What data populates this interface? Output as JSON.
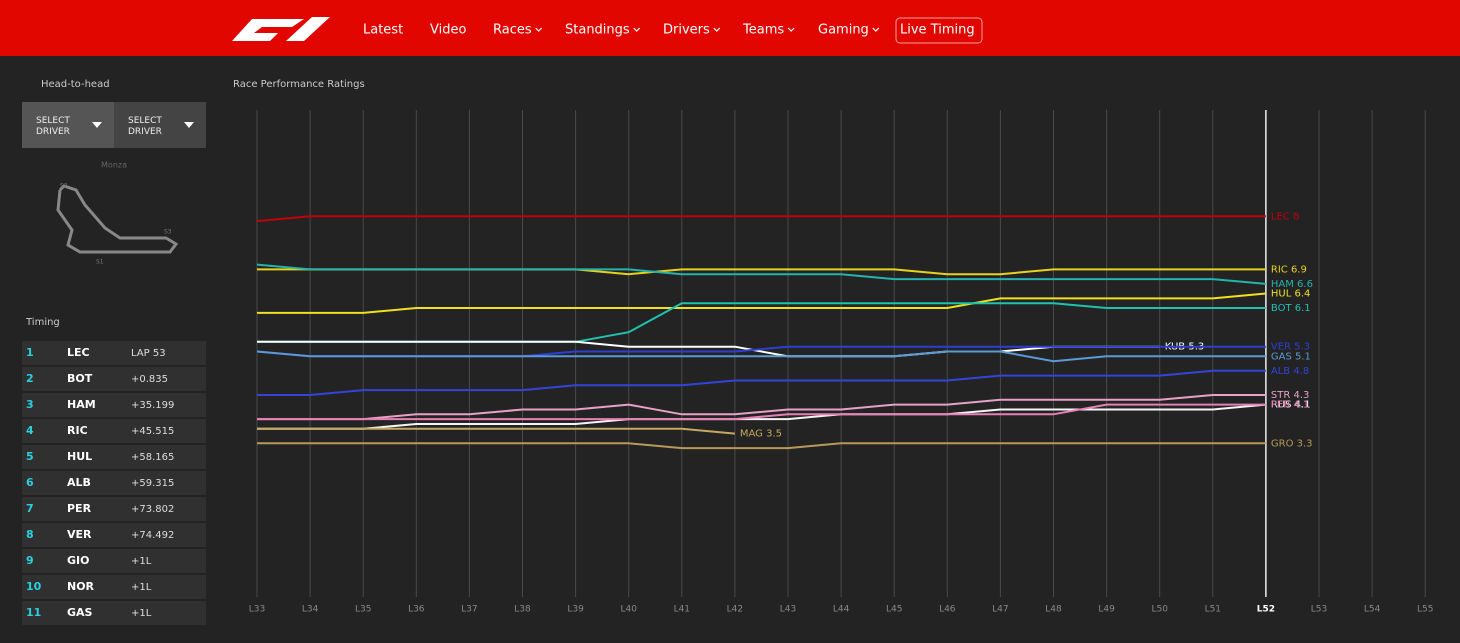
{
  "nav": {
    "items": [
      {
        "label": "Latest",
        "dropdown": false
      },
      {
        "label": "Video",
        "dropdown": false
      },
      {
        "label": "Races",
        "dropdown": true
      },
      {
        "label": "Standings",
        "dropdown": true
      },
      {
        "label": "Drivers",
        "dropdown": true
      },
      {
        "label": "Teams",
        "dropdown": true
      },
      {
        "label": "Gaming",
        "dropdown": true
      },
      {
        "label": "Live Timing",
        "dropdown": false
      }
    ]
  },
  "sidebar": {
    "head_to_head": "Head-to-head",
    "buttons": [
      "SELECT DRIVER",
      "SELECT DRIVER"
    ],
    "circuit": "Monza",
    "sectors": [
      "S1",
      "S2",
      "S3"
    ],
    "timing_title": "Timing",
    "timing": [
      [
        "1",
        "LEC",
        "LAP 53"
      ],
      [
        "2",
        "BOT",
        "+0.835"
      ],
      [
        "3",
        "HAM",
        "+35.199"
      ],
      [
        "4",
        "RIC",
        "+45.515"
      ],
      [
        "5",
        "HUL",
        "+58.165"
      ],
      [
        "6",
        "ALB",
        "+59.315"
      ],
      [
        "7",
        "PER",
        "+73.802"
      ],
      [
        "8",
        "VER",
        "+74.492"
      ],
      [
        "9",
        "GIO",
        "+1L"
      ],
      [
        "10",
        "NOR",
        "+1L"
      ],
      [
        "11",
        "GAS",
        "+1L"
      ]
    ]
  },
  "chart_data": {
    "type": "line",
    "title": "Race Performance Ratings",
    "categories": [
      "L33",
      "L34",
      "L35",
      "L36",
      "L37",
      "L38",
      "L39",
      "L40",
      "L41",
      "L42",
      "L43",
      "L44",
      "L45",
      "L46",
      "L47",
      "L48",
      "L49",
      "L50",
      "L51",
      "L52",
      "L53",
      "L54",
      "L55"
    ],
    "current_index": 19,
    "ylim": [
      0.2,
      10.2
    ],
    "grid": true,
    "series": [
      {
        "name": "LEC",
        "label": "LEC 8",
        "color": "#c4000a",
        "values": [
          7.9,
          8,
          8,
          8,
          8,
          8,
          8,
          8,
          8,
          8,
          8,
          8,
          8,
          8,
          8,
          8,
          8,
          8,
          8,
          8,
          null,
          null,
          null
        ]
      },
      {
        "name": "RIC",
        "label": "RIC 6.9",
        "color": "#e8d21c",
        "values": [
          6.9,
          6.9,
          6.9,
          6.9,
          6.9,
          6.9,
          6.9,
          6.8,
          6.9,
          6.9,
          6.9,
          6.9,
          6.9,
          6.8,
          6.8,
          6.9,
          6.9,
          6.9,
          6.9,
          6.9,
          null,
          null,
          null
        ]
      },
      {
        "name": "HAM",
        "label": "HAM 6.6",
        "color": "#26b3ad",
        "values": [
          7.0,
          6.9,
          6.9,
          6.9,
          6.9,
          6.9,
          6.9,
          6.9,
          6.8,
          6.8,
          6.8,
          6.8,
          6.7,
          6.7,
          6.7,
          6.7,
          6.7,
          6.7,
          6.7,
          6.6,
          null,
          null,
          null
        ]
      },
      {
        "name": "HUL",
        "label": "HUL 6.4",
        "color": "#f0e020",
        "values": [
          6.0,
          6.0,
          6.0,
          6.1,
          6.1,
          6.1,
          6.1,
          6.1,
          6.1,
          6.1,
          6.1,
          6.1,
          6.1,
          6.1,
          6.3,
          6.3,
          6.3,
          6.3,
          6.3,
          6.4,
          null,
          null,
          null
        ]
      },
      {
        "name": "BOT",
        "label": "BOT 6.1",
        "color": "#1fc2b0",
        "values": [
          5.4,
          5.4,
          5.4,
          5.4,
          5.4,
          5.4,
          5.4,
          5.6,
          6.2,
          6.2,
          6.2,
          6.2,
          6.2,
          6.2,
          6.2,
          6.2,
          6.1,
          6.1,
          6.1,
          6.1,
          null,
          null,
          null
        ]
      },
      {
        "name": "KUB",
        "label": "KUB 5.3",
        "color": "#ffffff",
        "values": [
          5.4,
          5.4,
          5.4,
          5.4,
          5.4,
          5.4,
          5.4,
          5.3,
          5.3,
          5.3,
          5.1,
          5.1,
          5.1,
          5.2,
          5.2,
          5.3,
          5.3,
          5.3,
          null,
          null,
          null,
          null,
          null
        ]
      },
      {
        "name": "VER",
        "label": "VER 5.3",
        "color": "#2d3fd0",
        "values": [
          5.2,
          5.1,
          5.1,
          5.1,
          5.1,
          5.1,
          5.2,
          5.2,
          5.2,
          5.2,
          5.3,
          5.3,
          5.3,
          5.3,
          5.3,
          5.3,
          5.3,
          5.3,
          5.3,
          5.3,
          null,
          null,
          null
        ]
      },
      {
        "name": "GAS",
        "label": "GAS 5.1",
        "color": "#5a9ad8",
        "values": [
          5.2,
          5.1,
          5.1,
          5.1,
          5.1,
          5.1,
          5.1,
          5.1,
          5.1,
          5.1,
          5.1,
          5.1,
          5.1,
          5.2,
          5.2,
          5.0,
          5.1,
          5.1,
          5.1,
          5.1,
          null,
          null,
          null
        ]
      },
      {
        "name": "ALB",
        "label": "ALB 4.8",
        "color": "#3344d8",
        "values": [
          4.3,
          4.3,
          4.4,
          4.4,
          4.4,
          4.4,
          4.5,
          4.5,
          4.5,
          4.6,
          4.6,
          4.6,
          4.6,
          4.6,
          4.7,
          4.7,
          4.7,
          4.7,
          4.8,
          4.8,
          null,
          null,
          null
        ]
      },
      {
        "name": "STR",
        "label": "STR 4.3",
        "color": "#e8a0c8",
        "values": [
          3.8,
          3.8,
          3.8,
          3.9,
          3.9,
          4.0,
          4.0,
          4.1,
          3.9,
          3.9,
          4.0,
          4.0,
          4.1,
          4.1,
          4.2,
          4.2,
          4.2,
          4.2,
          4.3,
          4.3,
          null,
          null,
          null
        ]
      },
      {
        "name": "RUS",
        "label": "RUS 4.1",
        "color": "#f4f4f4",
        "values": [
          3.6,
          3.6,
          3.6,
          3.7,
          3.7,
          3.7,
          3.7,
          3.8,
          3.8,
          3.8,
          3.8,
          3.9,
          3.9,
          3.9,
          4.0,
          4.0,
          4.0,
          4.0,
          4.0,
          4.1,
          null,
          null,
          null
        ]
      },
      {
        "name": "PER",
        "label": "PER 4.1",
        "color": "#e880b8",
        "values": [
          3.8,
          3.8,
          3.8,
          3.8,
          3.8,
          3.8,
          3.8,
          3.8,
          3.8,
          3.8,
          3.9,
          3.9,
          3.9,
          3.9,
          3.9,
          3.9,
          4.1,
          4.1,
          4.1,
          4.1,
          null,
          null,
          null
        ]
      },
      {
        "name": "MAG",
        "label": "MAG 3.5",
        "color": "#c8a860",
        "values": [
          3.6,
          3.6,
          3.6,
          3.6,
          3.6,
          3.6,
          3.6,
          3.6,
          3.6,
          3.5,
          null,
          null,
          null,
          null,
          null,
          null,
          null,
          null,
          null,
          null,
          null,
          null,
          null
        ]
      },
      {
        "name": "GRO",
        "label": "GRO 3.3",
        "color": "#b89a58",
        "values": [
          3.3,
          3.3,
          3.3,
          3.3,
          3.3,
          3.3,
          3.3,
          3.3,
          3.2,
          3.2,
          3.2,
          3.3,
          3.3,
          3.3,
          3.3,
          3.3,
          3.3,
          3.3,
          3.3,
          3.3,
          null,
          null,
          null
        ]
      }
    ]
  }
}
